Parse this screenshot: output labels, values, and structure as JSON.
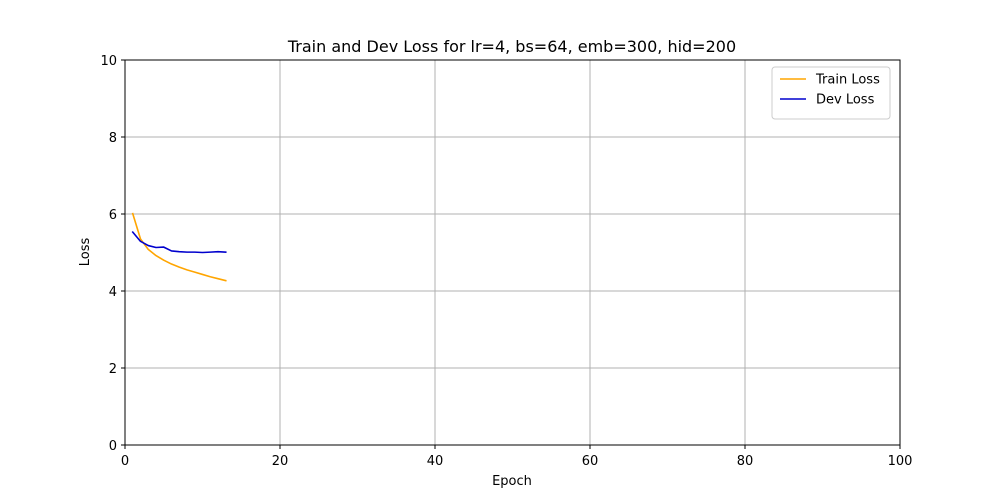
{
  "chart_data": {
    "type": "line",
    "title": "Train and Dev Loss for lr=4, bs=64, emb=300, hid=200",
    "xlabel": "Epoch",
    "ylabel": "Loss",
    "xlim": [
      0,
      100
    ],
    "ylim": [
      0,
      10
    ],
    "x_ticks": [
      0,
      20,
      40,
      60,
      80,
      100
    ],
    "y_ticks": [
      0,
      2,
      4,
      6,
      8,
      10
    ],
    "x_tick_labels": [
      "0",
      "20",
      "40",
      "60",
      "80",
      "100"
    ],
    "y_tick_labels": [
      "0",
      "2",
      "4",
      "6",
      "8",
      "10"
    ],
    "grid": true,
    "legend_position": "top-right",
    "x": [
      1,
      2,
      3,
      4,
      5,
      6,
      7,
      8,
      9,
      10,
      11,
      12,
      13
    ],
    "series": [
      {
        "name": "Train Loss",
        "color": "#ffa500",
        "values": [
          6.01,
          5.35,
          5.08,
          4.92,
          4.8,
          4.7,
          4.62,
          4.55,
          4.49,
          4.43,
          4.37,
          4.32,
          4.27
        ]
      },
      {
        "name": "Dev Loss",
        "color": "#0000cd",
        "values": [
          5.53,
          5.29,
          5.18,
          5.13,
          5.14,
          5.04,
          5.02,
          5.01,
          5.01,
          5.0,
          5.01,
          5.02,
          5.01
        ]
      }
    ]
  }
}
